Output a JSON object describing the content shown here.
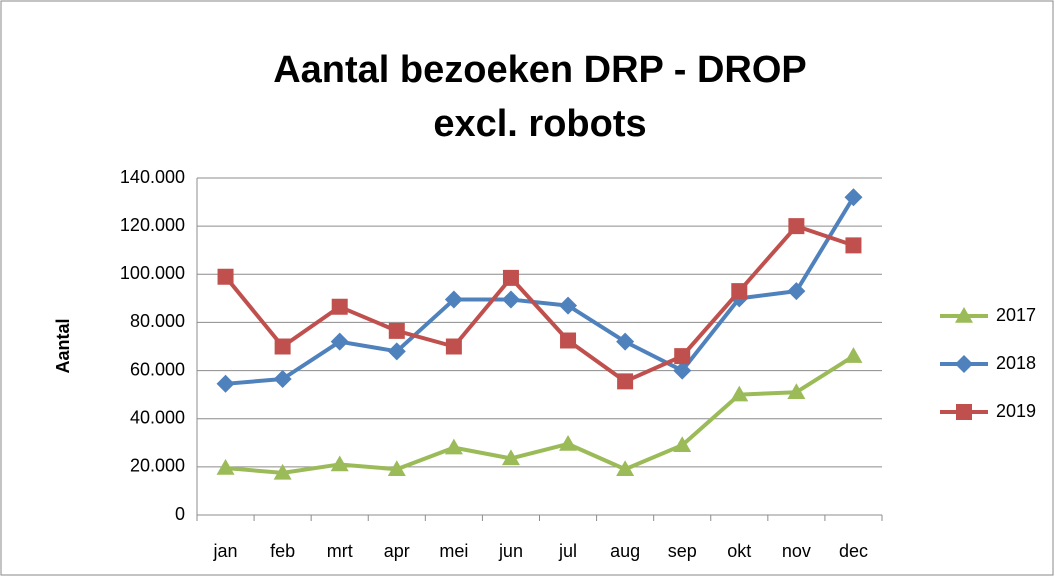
{
  "chart_data": {
    "type": "line",
    "title": [
      "Aantal bezoeken DRP - DROP",
      "excl. robots"
    ],
    "y_label": "Aantal",
    "categories": [
      "jan",
      "feb",
      "mrt",
      "apr",
      "mei",
      "jun",
      "jul",
      "aug",
      "sep",
      "okt",
      "nov",
      "dec"
    ],
    "series": [
      {
        "name": "2017",
        "color": "#9bbb59",
        "marker": "triangle",
        "values": [
          19500,
          17500,
          21000,
          19000,
          28000,
          23500,
          29500,
          19000,
          29000,
          50000,
          51000,
          66000
        ]
      },
      {
        "name": "2018",
        "color": "#4f81bd",
        "marker": "diamond",
        "values": [
          54500,
          56500,
          72000,
          68000,
          89500,
          89500,
          87000,
          72000,
          60000,
          90000,
          93000,
          132000
        ]
      },
      {
        "name": "2019",
        "color": "#c0504d",
        "marker": "square",
        "values": [
          99000,
          70000,
          86500,
          76500,
          70000,
          98500,
          72500,
          55500,
          66000,
          93000,
          120000,
          112000
        ]
      }
    ],
    "ylim": [
      0,
      140000
    ],
    "yticks": [
      0,
      {
        "value": 20000,
        "label": "20.000"
      },
      {
        "value": 40000,
        "label": "40.000"
      },
      {
        "value": 60000,
        "label": "60.000"
      },
      {
        "value": 80000,
        "label": "80.000"
      },
      {
        "value": 100000,
        "label": "100.000"
      },
      {
        "value": 120000,
        "label": "120.000"
      },
      {
        "value": 140000,
        "label": "140.000"
      }
    ],
    "grid": true,
    "legend": "right"
  }
}
